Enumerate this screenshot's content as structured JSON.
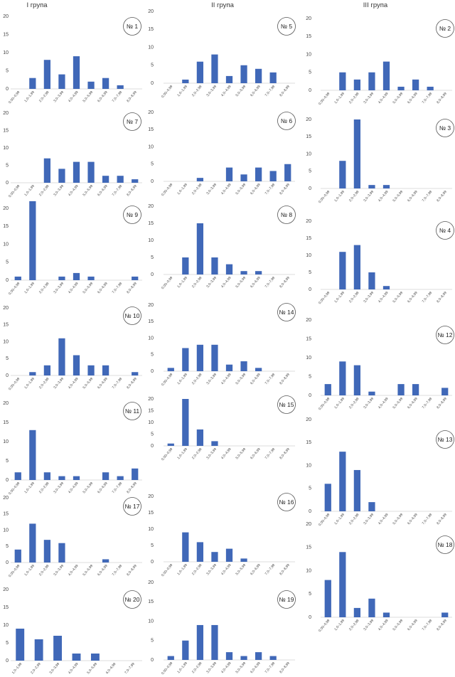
{
  "groups": [
    {
      "label": "I група"
    },
    {
      "label": "II група"
    },
    {
      "label": "III група"
    }
  ],
  "colors": {
    "bar": "#4068b8",
    "axis": "#d0d0d0",
    "badge_stroke": "#555555"
  },
  "chart_data": [
    {
      "type": "bar",
      "badge": "№ 1",
      "categories": [
        "0,00–0,99",
        "1,0–1,99",
        "2,0–2,99",
        "3,0–3,99",
        "4,0–4,99",
        "5,0–5,99",
        "6,0–6,99",
        "7,0–7,99",
        "8,0–8,99"
      ],
      "values": [
        0,
        3,
        8,
        4,
        9,
        2,
        3,
        1,
        0
      ],
      "ylim": [
        0,
        20
      ],
      "yticks": [
        0,
        5,
        10,
        15,
        20
      ]
    },
    {
      "type": "bar",
      "badge": "№ 7",
      "categories": [
        "0,00–0,99",
        "1,0–1,99",
        "2,0–2,99",
        "3,0–3,99",
        "4,0–4,99",
        "5,0–5,99",
        "6,0–6,99",
        "7,0–7,99",
        "8,0–8,99"
      ],
      "values": [
        0,
        0,
        7,
        4,
        6,
        6,
        2,
        2,
        1
      ],
      "ylim": [
        0,
        20
      ],
      "yticks": [
        0,
        5,
        10,
        15,
        20
      ]
    },
    {
      "type": "bar",
      "badge": "№ 9",
      "categories": [
        "0,00–0,99",
        "1,0–1,99",
        "2,0–2,99",
        "3,0–3,99",
        "4,0–4,99",
        "5,0–5,99",
        "6,0–6,99",
        "7,0–7,99",
        "8,0–8,99"
      ],
      "values": [
        1,
        22,
        0,
        1,
        2,
        1,
        0,
        0,
        1
      ],
      "ylim": [
        0,
        20
      ],
      "yticks": [
        0,
        5,
        10,
        15,
        20
      ]
    },
    {
      "type": "bar",
      "badge": "№ 10",
      "categories": [
        "0,00–0,99",
        "1,0–1,99",
        "2,0–2,99",
        "3,0–3,99",
        "4,0–4,99",
        "5,0–5,99",
        "6,0–6,99",
        "7,0–7,99",
        "8,0–8,99"
      ],
      "values": [
        0,
        1,
        3,
        11,
        6,
        3,
        3,
        0,
        1
      ],
      "ylim": [
        0,
        20
      ],
      "yticks": [
        0,
        5,
        10,
        15,
        20
      ]
    },
    {
      "type": "bar",
      "badge": "№ 11",
      "categories": [
        "0,00–0,99",
        "1,0–1,99",
        "2,0–2,99",
        "3,0–3,99",
        "4,0–4,99",
        "5,0–5,99",
        "6,0–6,99",
        "7,0–7,99",
        "8,0–8,99"
      ],
      "values": [
        2,
        13,
        2,
        1,
        1,
        0,
        2,
        1,
        3
      ],
      "ylim": [
        0,
        20
      ],
      "yticks": [
        0,
        5,
        10,
        15,
        20
      ]
    },
    {
      "type": "bar",
      "badge": "№ 17",
      "categories": [
        "0,00–0,99",
        "1,0–1,99",
        "2,0–2,99",
        "3,0–3,99",
        "4,0–4,99",
        "5,0–5,99",
        "6,0–6,99",
        "7,0–7,99",
        "8,0–8,99"
      ],
      "values": [
        4,
        12,
        7,
        6,
        0,
        0,
        1,
        0,
        0
      ],
      "ylim": [
        0,
        20
      ],
      "yticks": [
        0,
        5,
        10,
        15,
        20
      ]
    },
    {
      "type": "bar",
      "badge": "№ 20",
      "categories": [
        "1,0–1,99",
        "2,0–2,99",
        "3,0–3,99",
        "4,0–4,99",
        "5,0–5,99",
        "6,0–6,99",
        "7,0–7,99"
      ],
      "values": [
        9,
        6,
        7,
        2,
        2,
        0,
        0
      ],
      "ylim": [
        0,
        20
      ],
      "yticks": [
        0,
        5,
        10,
        15,
        20
      ]
    },
    {
      "type": "bar",
      "badge": "№ 5",
      "categories": [
        "0,00–0,99",
        "1,0–1,99",
        "2,0–2,99",
        "3,0–3,99",
        "4,0–4,99",
        "5,0–5,99",
        "6,0–6,99",
        "7,0–7,99",
        "8,0–8,99"
      ],
      "values": [
        0,
        1,
        6,
        8,
        2,
        5,
        4,
        3,
        0
      ],
      "ylim": [
        0,
        20
      ],
      "yticks": [
        0,
        5,
        10,
        15,
        20
      ]
    },
    {
      "type": "bar",
      "badge": "№ 6",
      "categories": [
        "0,00–0,99",
        "1,0–1,99",
        "2,0–2,99",
        "3,0–3,99",
        "4,0–4,99",
        "5,0–5,99",
        "6,0–6,99",
        "7,0–7,99",
        "8,0–8,99"
      ],
      "values": [
        0,
        0,
        1,
        0,
        4,
        2,
        4,
        3,
        5
      ],
      "ylim": [
        0,
        20
      ],
      "yticks": [
        0,
        5,
        10,
        15,
        20
      ]
    },
    {
      "type": "bar",
      "badge": "№ 8",
      "categories": [
        "0,00–0,99",
        "1,0–1,99",
        "2,0–2,99",
        "3,0–3,99",
        "4,0–4,99",
        "5,0–5,99",
        "6,0–6,99",
        "7,0–7,99",
        "8,0–8,99"
      ],
      "values": [
        0,
        5,
        15,
        5,
        3,
        1,
        1,
        0,
        0
      ],
      "ylim": [
        0,
        20
      ],
      "yticks": [
        0,
        5,
        10,
        15,
        20
      ]
    },
    {
      "type": "bar",
      "badge": "№ 14",
      "categories": [
        "0,00–0,99",
        "1,0–1,99",
        "2,0–2,99",
        "3,0–3,99",
        "4,0–4,99",
        "5,0–5,99",
        "6,0–6,99",
        "7,0–7,99",
        "8,0–8,99"
      ],
      "values": [
        1,
        7,
        8,
        8,
        2,
        3,
        1,
        0,
        0
      ],
      "ylim": [
        0,
        20
      ],
      "yticks": [
        0,
        5,
        10,
        15,
        20
      ]
    },
    {
      "type": "bar",
      "badge": "№ 15",
      "categories": [
        "0,00–0,99",
        "1,0–1,99",
        "2,0–2,99",
        "3,0–3,99",
        "4,0–4,99",
        "5,0–5,99",
        "6,0–6,99",
        "7,0–7,99",
        "8,0–8,99"
      ],
      "values": [
        1,
        20,
        7,
        2,
        0,
        0,
        0,
        0,
        0
      ],
      "ylim": [
        0,
        20
      ],
      "yticks": [
        0,
        5,
        10,
        15,
        20
      ]
    },
    {
      "type": "bar",
      "badge": "№ 16",
      "categories": [
        "0,00–0,99",
        "1,0–1,99",
        "2,0–2,99",
        "3,0–3,99",
        "4,0–4,99",
        "5,0–5,99",
        "6,0–6,99",
        "7,0–7,99",
        "8,0–8,99"
      ],
      "values": [
        0,
        9,
        6,
        3,
        4,
        1,
        0,
        0,
        0
      ],
      "ylim": [
        0,
        20
      ],
      "yticks": [
        0,
        5,
        10,
        15,
        20
      ]
    },
    {
      "type": "bar",
      "badge": "№ 19",
      "categories": [
        "0,00–0,99",
        "1,0–1,99",
        "2,0–2,99",
        "3,0–3,99",
        "4,0–4,99",
        "5,0–5,99",
        "6,0–6,99",
        "7,0–7,99",
        "8,0–8,99"
      ],
      "values": [
        1,
        5,
        9,
        9,
        2,
        1,
        2,
        1,
        0
      ],
      "ylim": [
        0,
        20
      ],
      "yticks": [
        0,
        5,
        10,
        15,
        20
      ]
    },
    {
      "type": "bar",
      "badge": "№ 2",
      "categories": [
        "0,00–0,99",
        "1,0–1,99",
        "2,0–2,99",
        "3,0–3,99",
        "4,0–4,99",
        "5,0–5,99",
        "6,0–6,99",
        "7,0–7,99",
        "8,0–8,99"
      ],
      "values": [
        0,
        5,
        3,
        5,
        8,
        1,
        3,
        1,
        0
      ],
      "ylim": [
        0,
        20
      ],
      "yticks": [
        0,
        5,
        10,
        15,
        20
      ]
    },
    {
      "type": "bar",
      "badge": "№ 3",
      "categories": [
        "0,00–0,99",
        "1,0–1,99",
        "2,0–2,99",
        "3,0–3,99",
        "4,0–4,99",
        "5,0–5,99",
        "6,0–6,99",
        "7,0–7,99",
        "8,0–8,99"
      ],
      "values": [
        0,
        8,
        20,
        1,
        1,
        0,
        0,
        0,
        0
      ],
      "ylim": [
        0,
        20
      ],
      "yticks": [
        0,
        5,
        10,
        15,
        20
      ]
    },
    {
      "type": "bar",
      "badge": "№ 4",
      "categories": [
        "0,00–0,99",
        "1,0–1,99",
        "2,0–2,99",
        "3,0–3,99",
        "4,0–4,99",
        "5,0–5,99",
        "6,0–6,99",
        "7,0–7,99",
        "8,0–8,99"
      ],
      "values": [
        0,
        11,
        13,
        5,
        1,
        0,
        0,
        0,
        0
      ],
      "ylim": [
        0,
        20
      ],
      "yticks": [
        0,
        5,
        10,
        15,
        20
      ]
    },
    {
      "type": "bar",
      "badge": "№ 12",
      "categories": [
        "0,00–0,99",
        "1,0–1,99",
        "2,0–2,99",
        "3,0–3,99",
        "4,0–4,99",
        "5,0–5,99",
        "6,0–6,99",
        "7,0–7,99",
        "8,0–8,99"
      ],
      "values": [
        3,
        9,
        8,
        1,
        0,
        3,
        3,
        0,
        2
      ],
      "ylim": [
        0,
        20
      ],
      "yticks": [
        0,
        5,
        10,
        15,
        20
      ]
    },
    {
      "type": "bar",
      "badge": "№ 13",
      "categories": [
        "0,00–0,99",
        "1,0–1,99",
        "2,0–2,99",
        "3,0–3,99",
        "4,0–4,99",
        "5,0–5,99",
        "6,0–6,99",
        "7,0–7,99",
        "8,0–8,99"
      ],
      "values": [
        6,
        13,
        9,
        2,
        0,
        0,
        0,
        0,
        0
      ],
      "ylim": [
        0,
        20
      ],
      "yticks": [
        0,
        5,
        10,
        15,
        20
      ]
    },
    {
      "type": "bar",
      "badge": "№ 18",
      "categories": [
        "0,00–0,99",
        "1,0–1,99",
        "2,0–2,99",
        "3,0–3,99",
        "4,0–4,99",
        "5,0–5,99",
        "6,0–6,99",
        "7,0–7,99",
        "8,0–8,99"
      ],
      "values": [
        8,
        14,
        2,
        4,
        1,
        0,
        0,
        0,
        1
      ],
      "ylim": [
        0,
        20
      ],
      "yticks": [
        0,
        5,
        10,
        15,
        20
      ]
    }
  ]
}
